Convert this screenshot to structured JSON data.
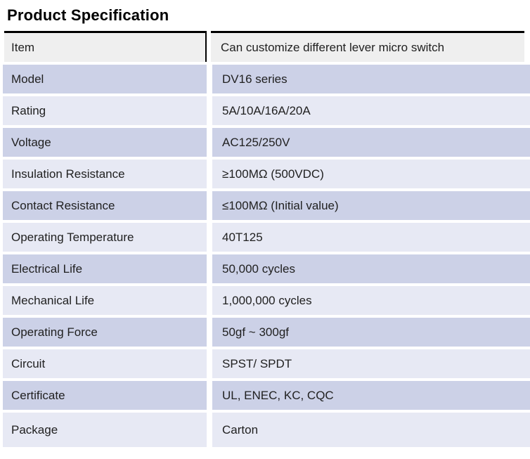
{
  "page": {
    "title": "Product Specification"
  },
  "colors": {
    "background": "#ffffff",
    "title_color": "#000000",
    "border_color": "#000000",
    "text_color": "#212121",
    "header_row_bg": "#efefef",
    "row_dark_bg": "#ccd1e7",
    "row_light_bg": "#e7e9f4"
  },
  "table": {
    "rows": [
      {
        "label": "Item",
        "value": "Can customize different lever micro switch"
      },
      {
        "label": "Model",
        "value": "DV16 series"
      },
      {
        "label": "Rating",
        "value": "5A/10A/16A/20A"
      },
      {
        "label": "Voltage",
        "value": "AC125/250V"
      },
      {
        "label": "Insulation Resistance",
        "value": "≥100MΩ (500VDC)"
      },
      {
        "label": "Contact Resistance",
        "value": "≤100MΩ (Initial value)"
      },
      {
        "label": "Operating Temperature",
        "value": "40T125"
      },
      {
        "label": "Electrical Life",
        "value": "50,000 cycles"
      },
      {
        "label": "Mechanical Life",
        "value": "1,000,000 cycles"
      },
      {
        "label": "Operating Force",
        "value": "50gf ~ 300gf"
      },
      {
        "label": "Circuit",
        "value": "SPST/ SPDT"
      },
      {
        "label": "Certificate",
        "value": "UL, ENEC, KC, CQC"
      },
      {
        "label": "Package",
        "value": "Carton"
      }
    ]
  }
}
